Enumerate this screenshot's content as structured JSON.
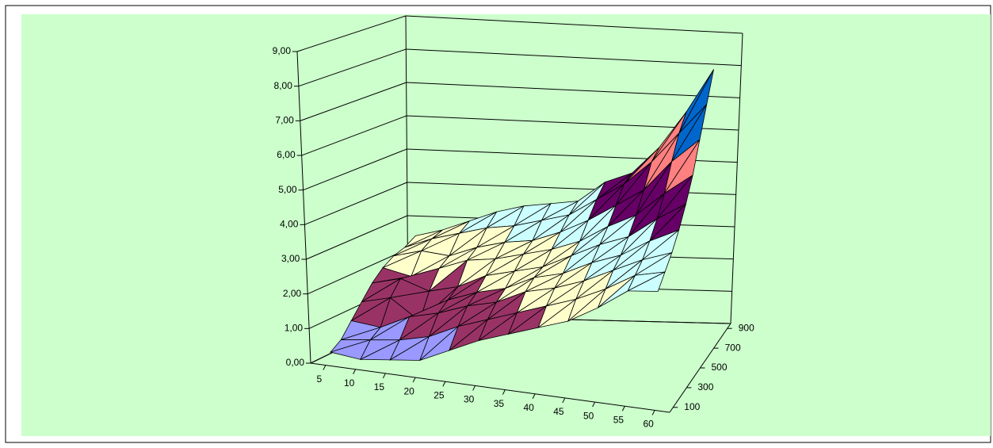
{
  "chart_data": {
    "type": "surface",
    "categories": [
      "5",
      "10",
      "15",
      "20",
      "25",
      "30",
      "35",
      "40",
      "45",
      "50",
      "55",
      "60"
    ],
    "series": [
      {
        "name": "100",
        "values": [
          0.3,
          0.2,
          0.3,
          0.4,
          0.8,
          1.2,
          1.5,
          1.8,
          2.1,
          2.6,
          3.2,
          3.3
        ]
      },
      {
        "name": null,
        "values": [
          0.5,
          0.6,
          0.7,
          0.9,
          1.3,
          1.6,
          1.9,
          2.2,
          2.5,
          2.9,
          3.4,
          3.6
        ]
      },
      {
        "name": "300",
        "values": [
          0.9,
          0.8,
          1.2,
          1.4,
          1.7,
          1.9,
          2.3,
          2.5,
          2.8,
          3.2,
          3.6,
          3.9
        ]
      },
      {
        "name": null,
        "values": [
          1.3,
          1.5,
          0.9,
          1.6,
          1.9,
          2.1,
          2.5,
          2.7,
          3.1,
          3.4,
          3.9,
          4.3
        ]
      },
      {
        "name": "500",
        "values": [
          1.7,
          1.9,
          1.6,
          1.8,
          2.2,
          2.4,
          2.6,
          3.0,
          3.4,
          3.7,
          4.3,
          4.8
        ]
      },
      {
        "name": null,
        "values": [
          2.0,
          1.8,
          2.1,
          2.4,
          2.5,
          2.7,
          2.9,
          3.2,
          3.7,
          4.1,
          4.8,
          5.4
        ]
      },
      {
        "name": "700",
        "values": [
          2.2,
          2.4,
          2.3,
          2.6,
          2.8,
          2.9,
          3.2,
          3.6,
          4.1,
          4.6,
          5.5,
          6.2
        ]
      },
      {
        "name": null,
        "values": [
          2.3,
          2.6,
          2.8,
          3.0,
          3.1,
          3.3,
          3.5,
          4.0,
          4.5,
          5.2,
          6.1,
          7.0
        ]
      },
      {
        "name": "900",
        "values": [
          2.5,
          2.7,
          3.0,
          3.3,
          3.5,
          3.6,
          3.7,
          4.3,
          4.6,
          5.4,
          6.5,
          7.8
        ]
      }
    ],
    "zlim": [
      0,
      9
    ],
    "zticks": [
      {
        "value": 0,
        "label": "0,00"
      },
      {
        "value": 1,
        "label": "1,00"
      },
      {
        "value": 2,
        "label": "2,00"
      },
      {
        "value": 3,
        "label": "3,00"
      },
      {
        "value": 4,
        "label": "4,00"
      },
      {
        "value": 5,
        "label": "5,00"
      },
      {
        "value": 6,
        "label": "6,00"
      },
      {
        "value": 7,
        "label": "7,00"
      },
      {
        "value": 8,
        "label": "8,00"
      },
      {
        "value": 9,
        "label": "9,00"
      }
    ],
    "band_colors": [
      "#9999ff",
      "#993366",
      "#ffffcc",
      "#ccffff",
      "#660066",
      "#ff8080",
      "#0066cc",
      "#ccccff",
      "#000080"
    ],
    "grid": true,
    "background": "#ccffcc"
  }
}
